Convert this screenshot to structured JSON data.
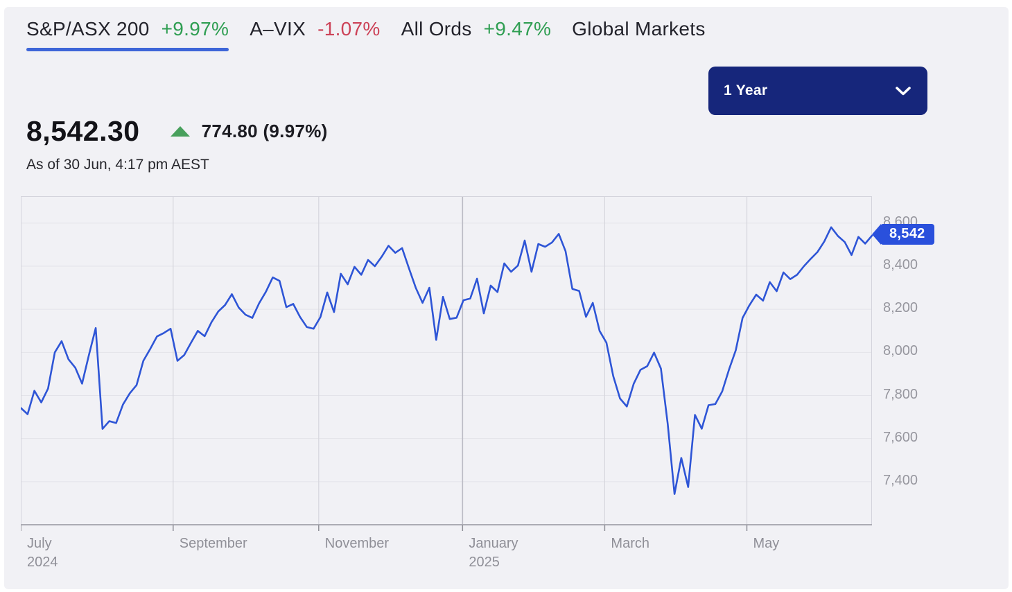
{
  "tabs": [
    {
      "name": "S&P/ASX 200",
      "change": "+9.97%",
      "direction": "up",
      "active": true
    },
    {
      "name": "A–VIX",
      "change": "-1.07%",
      "direction": "down",
      "active": false
    },
    {
      "name": "All Ords",
      "change": "+9.47%",
      "direction": "up",
      "active": false
    },
    {
      "name": "Global Markets",
      "change": "",
      "direction": "none",
      "active": false
    }
  ],
  "range_selector": {
    "label": "1 Year",
    "icon": "chevron-down-icon"
  },
  "quote": {
    "price": "8,542.30",
    "change": "774.80 (9.97%)",
    "direction": "up",
    "as_of": "As of 30 Jun, 4:17 pm AEST"
  },
  "price_tag": "8,542",
  "colors": {
    "accent_blue": "#3e66d8",
    "line_blue": "#2e55d6",
    "tag_blue": "#2a50dc",
    "dropdown_navy": "#16267b",
    "up_green": "#2f9e52",
    "down_red": "#cc4257",
    "panel_bg": "#f1f1f5",
    "axis_text": "#96969e"
  },
  "chart_data": {
    "type": "line",
    "title": "S&P/ASX 200 — 1 Year",
    "series_name": "S&P/ASX 200",
    "x_range": [
      "July 2024",
      "June 2025"
    ],
    "ylim": [
      7200,
      8725
    ],
    "grid": true,
    "legend_position": "none",
    "current_value": 8542.3,
    "y_ticks": [
      {
        "value": 8600,
        "label": "8,600"
      },
      {
        "value": 8400,
        "label": "8,400"
      },
      {
        "value": 8200,
        "label": "8,200"
      },
      {
        "value": 8000,
        "label": "8,000"
      },
      {
        "value": 7800,
        "label": "7,800"
      },
      {
        "value": 7600,
        "label": "7,600"
      },
      {
        "value": 7400,
        "label": "7,400"
      }
    ],
    "x_ticks": [
      {
        "frac": 0.0,
        "line1": "July",
        "line2": "2024",
        "gridline": false,
        "major": false
      },
      {
        "frac": 0.179,
        "line1": "September",
        "line2": "",
        "gridline": true,
        "major": false
      },
      {
        "frac": 0.35,
        "line1": "November",
        "line2": "",
        "gridline": true,
        "major": false
      },
      {
        "frac": 0.519,
        "line1": "January",
        "line2": "2025",
        "gridline": true,
        "major": true
      },
      {
        "frac": 0.686,
        "line1": "March",
        "line2": "",
        "gridline": true,
        "major": false
      },
      {
        "frac": 0.853,
        "line1": "May",
        "line2": "",
        "gridline": true,
        "major": false
      }
    ],
    "values": [
      7742,
      7713,
      7822,
      7768,
      7832,
      8000,
      8052,
      7968,
      7929,
      7855,
      7987,
      8113,
      7645,
      7681,
      7672,
      7758,
      7810,
      7848,
      7961,
      8016,
      8074,
      8090,
      8110,
      7961,
      7988,
      8045,
      8100,
      8075,
      8140,
      8190,
      8220,
      8270,
      8208,
      8175,
      8160,
      8228,
      8282,
      8348,
      8332,
      8210,
      8225,
      8165,
      8118,
      8110,
      8164,
      8278,
      8187,
      8365,
      8316,
      8397,
      8360,
      8429,
      8400,
      8444,
      8495,
      8462,
      8484,
      8390,
      8300,
      8230,
      8300,
      8058,
      8258,
      8155,
      8161,
      8242,
      8250,
      8342,
      8181,
      8310,
      8280,
      8413,
      8374,
      8403,
      8519,
      8374,
      8503,
      8490,
      8510,
      8550,
      8470,
      8295,
      8285,
      8165,
      8230,
      8100,
      8045,
      7890,
      7786,
      7749,
      7854,
      7919,
      7936,
      7999,
      7925,
      7668,
      7343,
      7510,
      7375,
      7710,
      7646,
      7755,
      7760,
      7819,
      7920,
      8010,
      8160,
      8219,
      8268,
      8240,
      8326,
      8284,
      8371,
      8340,
      8360,
      8400,
      8434,
      8466,
      8515,
      8581,
      8540,
      8512,
      8452,
      8536,
      8505,
      8542
    ]
  }
}
